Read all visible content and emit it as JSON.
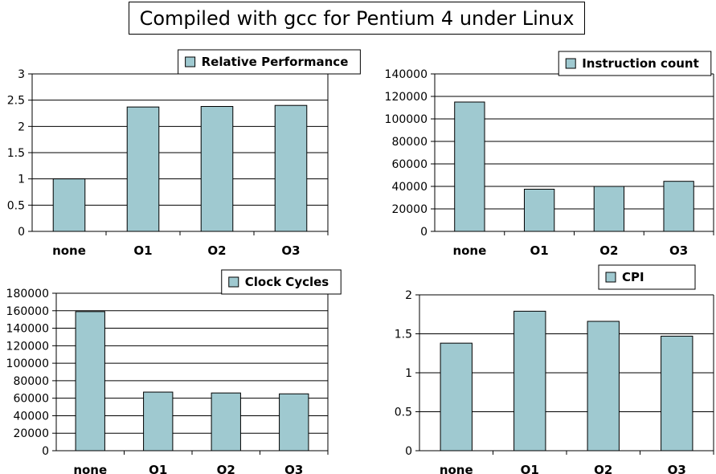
{
  "page": {
    "title": "Compiled with gcc for Pentium 4 under Linux"
  },
  "colors": {
    "bar": "#9fc9d0",
    "bar_stroke": "#000000",
    "grid": "#000000"
  },
  "chart_data": [
    {
      "type": "bar",
      "title": "",
      "legend": "Relative Performance",
      "categories": [
        "none",
        "O1",
        "O2",
        "O3"
      ],
      "values": [
        1.0,
        2.37,
        2.38,
        2.4
      ],
      "ylim": [
        0,
        3
      ],
      "yticks": [
        0,
        0.5,
        1,
        1.5,
        2,
        2.5,
        3
      ],
      "ytick_labels": [
        "0",
        "0.5",
        "1",
        "1.5",
        "2",
        "2.5",
        "3"
      ],
      "grid": true
    },
    {
      "type": "bar",
      "title": "",
      "legend": "Instruction count",
      "categories": [
        "none",
        "O1",
        "O2",
        "O3"
      ],
      "values": [
        115000,
        37500,
        40000,
        44500
      ],
      "ylim": [
        0,
        140000
      ],
      "yticks": [
        0,
        20000,
        40000,
        60000,
        80000,
        100000,
        120000,
        140000
      ],
      "ytick_labels": [
        "0",
        "20000",
        "40000",
        "60000",
        "80000",
        "100000",
        "120000",
        "140000"
      ],
      "grid": true
    },
    {
      "type": "bar",
      "title": "",
      "legend": "Clock Cycles",
      "categories": [
        "none",
        "O1",
        "O2",
        "O3"
      ],
      "values": [
        159000,
        67000,
        66000,
        65000
      ],
      "ylim": [
        0,
        180000
      ],
      "yticks": [
        0,
        20000,
        40000,
        60000,
        80000,
        100000,
        120000,
        140000,
        160000,
        180000
      ],
      "ytick_labels": [
        "0",
        "20000",
        "40000",
        "60000",
        "80000",
        "100000",
        "120000",
        "140000",
        "160000",
        "180000"
      ],
      "grid": true
    },
    {
      "type": "bar",
      "title": "",
      "legend": "CPI",
      "categories": [
        "none",
        "O1",
        "O2",
        "O3"
      ],
      "values": [
        1.38,
        1.79,
        1.66,
        1.47
      ],
      "ylim": [
        0,
        2
      ],
      "yticks": [
        0,
        0.5,
        1,
        1.5,
        2
      ],
      "ytick_labels": [
        "0",
        "0.5",
        "1",
        "1.5",
        "2"
      ],
      "grid": true
    }
  ]
}
